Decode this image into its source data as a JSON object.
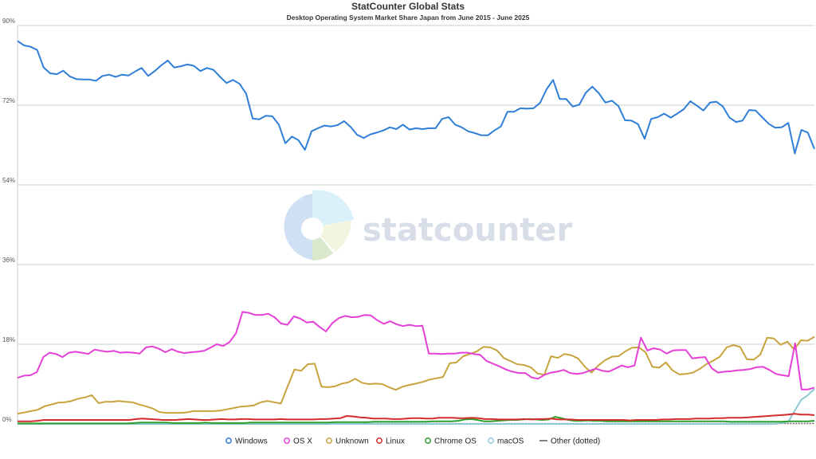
{
  "header": {
    "title": "StatCounter Global Stats",
    "subtitle": "Desktop Operating System Market Share Japan from June 2015 - June 2025"
  },
  "watermark": {
    "text": "statcounter"
  },
  "chart_data": {
    "type": "line",
    "title": "StatCounter Global Stats",
    "subtitle": "Desktop Operating System Market Share Japan from June 2015 - June 2025",
    "x_start": "2015-06",
    "x_end": "2025-06",
    "ylim": [
      0,
      90
    ],
    "y_ticks": [
      0,
      18,
      36,
      54,
      72,
      90
    ],
    "y_tick_labels": [
      "0%",
      "18%",
      "36%",
      "54%",
      "72%",
      "90%"
    ],
    "grid": true,
    "legend_position": "bottom",
    "series": [
      {
        "name": "Windows",
        "color": "#2f7ed8",
        "values": [
          86.5,
          85.5,
          85.2,
          84.5,
          80.5,
          79.2,
          79,
          79.8,
          78.5,
          77.9,
          77.8,
          77.8,
          77.5,
          78.6,
          78.9,
          78.4,
          78.9,
          78.7,
          79.6,
          80.4,
          78.6,
          79.7,
          81,
          82.1,
          80.5,
          80.8,
          81.2,
          80.9,
          79.7,
          80.4,
          80,
          78.4,
          77,
          77.7,
          76.8,
          74.6,
          69,
          68.8,
          69.6,
          69.5,
          67.6,
          63.4,
          64.9,
          64.1,
          61.9,
          66.1,
          66.8,
          67.4,
          67.2,
          67.5,
          68.4,
          67.1,
          65.3,
          64.6,
          65.4,
          65.8,
          66.3,
          67,
          66.6,
          67.6,
          66.5,
          66.8,
          66.6,
          66.8,
          66.8,
          68.9,
          69.3,
          67.6,
          67,
          66.1,
          65.7,
          65.2,
          65.2,
          66.3,
          67.2,
          70.5,
          70.5,
          71.3,
          71.2,
          71.3,
          72.5,
          75.6,
          77.7,
          73.4,
          73.4,
          71.7,
          72.1,
          74.8,
          76.2,
          74.7,
          72.6,
          73,
          71.8,
          68.6,
          68.5,
          67.7,
          64.4,
          68.9,
          69.3,
          70.1,
          69.2,
          70.1,
          71.1,
          72.9,
          71.9,
          70.8,
          72.6,
          72.8,
          71.7,
          69.2,
          68.2,
          68.5,
          70.9,
          70.8,
          69.3,
          67.8,
          66.9,
          67,
          68,
          61.1,
          66.4,
          65.8,
          62.1
        ]
      },
      {
        "name": "OS X",
        "color": "#e63fd6",
        "values": [
          10.4,
          10.9,
          11,
          11.7,
          15.1,
          16.1,
          15.8,
          15.1,
          16.1,
          16.3,
          16.1,
          15.8,
          16.8,
          16.5,
          16.3,
          16.5,
          16.1,
          16.2,
          16.1,
          15.9,
          17.3,
          17.5,
          17,
          16.2,
          16.9,
          16.3,
          16,
          16.2,
          16.3,
          16.5,
          17.2,
          18,
          17.6,
          18.5,
          20.5,
          25.3,
          25.1,
          24.6,
          24.6,
          24.9,
          24.1,
          22.7,
          22.4,
          24.3,
          23.8,
          22.9,
          23.1,
          21.9,
          20.9,
          22.8,
          23.9,
          24.4,
          24.1,
          24.2,
          24.6,
          24.5,
          23.4,
          22.6,
          23.2,
          22.5,
          22.1,
          22.4,
          22.1,
          22.2,
          15.9,
          15.9,
          15.8,
          15.9,
          15.9,
          16.1,
          16.1,
          15.8,
          15.6,
          14.2,
          13.6,
          13,
          12.3,
          11.8,
          11.5,
          11.5,
          10.5,
          10.2,
          11.1,
          11.6,
          11.8,
          12.2,
          11.5,
          11.3,
          11.5,
          12,
          12.5,
          12,
          11.8,
          12.5,
          13.2,
          12.8,
          13.2,
          19.5,
          16.6,
          17.1,
          16.8,
          15.9,
          16.6,
          16.7,
          16.7,
          14.8,
          15,
          15.1,
          12.6,
          11.6,
          11.8,
          11.9,
          12.1,
          12.2,
          12.4,
          12.8,
          12.9,
          12.2,
          11.3,
          11,
          10.8,
          18.2,
          7.8,
          7.8,
          8.2
        ]
      },
      {
        "name": "Unknown",
        "color": "#c8a33d",
        "values": [
          2.3,
          2.6,
          2.9,
          3.2,
          4,
          4.4,
          4.8,
          4.9,
          5.2,
          5.7,
          6,
          6.5,
          4.7,
          5,
          5,
          5.2,
          5,
          4.9,
          4.4,
          4,
          3.5,
          2.7,
          2.5,
          2.5,
          2.5,
          2.6,
          2.9,
          2.9,
          2.9,
          2.9,
          3,
          3.3,
          3.6,
          3.9,
          4,
          4.2,
          4.9,
          5.2,
          4.9,
          4.6,
          8.5,
          12.3,
          12,
          13.5,
          13.6,
          8.4,
          8.3,
          8.5,
          9.1,
          9.4,
          10.2,
          9.3,
          9,
          9.1,
          9,
          8.3,
          7.7,
          8.4,
          8.8,
          9.1,
          9.5,
          10,
          10.3,
          10.6,
          13.7,
          13.9,
          15.3,
          15.8,
          16.4,
          17.4,
          17.3,
          16.6,
          14.9,
          14.2,
          13.5,
          13.3,
          12.8,
          11.4,
          11.1,
          15.3,
          14.9,
          15.8,
          15.5,
          14.8,
          12.9,
          11.6,
          13.2,
          14.4,
          15.2,
          15.3,
          16.4,
          17.2,
          17.3,
          16.2,
          12.9,
          12.7,
          13.9,
          12.1,
          11.2,
          11.3,
          11.6,
          12.4,
          13.5,
          14.3,
          15.2,
          17.3,
          17.8,
          17.4,
          14.6,
          14.5,
          15.7,
          19.5,
          19.3,
          17.9,
          18.6,
          16.8,
          18.9,
          18.8,
          19.7
        ]
      },
      {
        "name": "Linux",
        "color": "#d42c2c",
        "values": [
          0.6,
          0.6,
          0.6,
          0.7,
          0.9,
          0.9,
          0.9,
          0.9,
          0.9,
          0.9,
          0.9,
          0.9,
          0.9,
          0.9,
          0.9,
          0.9,
          0.9,
          0.9,
          1.1,
          1.2,
          1.1,
          1,
          0.9,
          0.9,
          0.9,
          1,
          1.1,
          1,
          0.9,
          0.9,
          1,
          1.1,
          1,
          1,
          1.1,
          1.1,
          1,
          1,
          1,
          1,
          1.1,
          1,
          1,
          1,
          1,
          1,
          1.1,
          1.1,
          1.2,
          1.3,
          1.8,
          1.7,
          1.5,
          1.4,
          1.2,
          1.2,
          1.2,
          1.1,
          1.1,
          1.2,
          1.3,
          1.3,
          1.2,
          1.2,
          1.4,
          1.4,
          1.4,
          1.3,
          1.3,
          1.4,
          1.3,
          1.1,
          1.1,
          1,
          1,
          1,
          1,
          1.1,
          1,
          1.1,
          1.1,
          1.2,
          1,
          1,
          1,
          0.9,
          0.9,
          0.9,
          0.9,
          0.9,
          0.9,
          0.9,
          0.9,
          0.8,
          0.9,
          0.9,
          0.9,
          0.9,
          1,
          1,
          1.1,
          1.1,
          1.1,
          1.2,
          1.2,
          1.2,
          1.3,
          1.3,
          1.4,
          1.4,
          1.4,
          1.5,
          1.6,
          1.7,
          1.8,
          1.9,
          2,
          2.1,
          2.3,
          2.1,
          2.1,
          2
        ]
      },
      {
        "name": "Chrome OS",
        "color": "#2ca02c",
        "values": [
          0.1,
          0.1,
          0.1,
          0.1,
          0.1,
          0.1,
          0.1,
          0.1,
          0.1,
          0.1,
          0.1,
          0.1,
          0.1,
          0.1,
          0.1,
          0.1,
          0.1,
          0.1,
          0.2,
          0.3,
          0.3,
          0.3,
          0.3,
          0.3,
          0.2,
          0.2,
          0.2,
          0.2,
          0.2,
          0.3,
          0.2,
          0.2,
          0.2,
          0.2,
          0.2,
          0.2,
          0.3,
          0.3,
          0.3,
          0.3,
          0.3,
          0.3,
          0.3,
          0.3,
          0.3,
          0.3,
          0.3,
          0.3,
          0.3,
          0.4,
          0.4,
          0.4,
          0.4,
          0.4,
          0.4,
          0.5,
          0.5,
          0.5,
          0.5,
          0.5,
          0.5,
          0.5,
          0.5,
          0.5,
          0.6,
          0.6,
          0.6,
          0.6,
          0.7,
          1,
          1.1,
          0.9,
          0.6,
          0.6,
          0.7,
          0.8,
          0.9,
          0.9,
          1,
          1.1,
          1,
          0.9,
          1,
          1.6,
          1.3,
          0.9,
          0.7,
          0.7,
          0.8,
          0.7,
          0.7,
          0.6,
          0.6,
          0.6,
          0.6,
          0.6,
          0.6,
          0.6,
          0.6,
          0.6,
          0.6,
          0.6,
          0.6,
          0.6,
          0.6,
          0.6,
          0.6,
          0.6,
          0.6,
          0.6,
          0.5,
          0.5,
          0.5,
          0.5,
          0.5,
          0.5,
          0.5,
          0.5,
          0.5,
          0.6,
          0.6,
          0.6,
          0.6,
          0.7
        ]
      },
      {
        "name": "macOS",
        "color": "#8ec9d4",
        "values": [
          0,
          0,
          0,
          0,
          0,
          0,
          0,
          0,
          0,
          0,
          0,
          0,
          0,
          0,
          0,
          0,
          0,
          0,
          0,
          0,
          0,
          0,
          0,
          0,
          0,
          0,
          0,
          0,
          0,
          0,
          0,
          0,
          0,
          0,
          0,
          0,
          0,
          0,
          0,
          0,
          0,
          0,
          0,
          0,
          0,
          0,
          0,
          0,
          0,
          0,
          0,
          0,
          0,
          0,
          0,
          0,
          0,
          0,
          0,
          0,
          0,
          0,
          0,
          0,
          0,
          0,
          0,
          0,
          0,
          0,
          0,
          0,
          0,
          0,
          0,
          0,
          0,
          0,
          0,
          0,
          0,
          0,
          0,
          0,
          0,
          0,
          0,
          0,
          0,
          0,
          0,
          0,
          0,
          0,
          0,
          0,
          0,
          0,
          0,
          0,
          0,
          0,
          0,
          0,
          0,
          0,
          0,
          0,
          0,
          0,
          0,
          0,
          0,
          0,
          0,
          0,
          0,
          0.2,
          0.5,
          3,
          5.5,
          6.5,
          7.9
        ]
      },
      {
        "name": "Other (dotted)",
        "color": "#555555",
        "dotted": true,
        "values": [
          0.1,
          0.1,
          0.1,
          0.1,
          0.1,
          0.1,
          0.1,
          0.1,
          0.1,
          0.1,
          0.1,
          0.1,
          0.1,
          0.1,
          0.1,
          0.1,
          0.1,
          0.1,
          0.1,
          0.1,
          0.1,
          0.1,
          0.1,
          0.1,
          0.1,
          0.1,
          0.1,
          0.1,
          0.1,
          0.1,
          0.1,
          0.1,
          0.1,
          0.1,
          0.1,
          0.1,
          0.1,
          0.1,
          0.1,
          0.1,
          0.1,
          0.1,
          0.1,
          0.1,
          0.1,
          0.1,
          0.1,
          0.1,
          0.1,
          0.1,
          0.1,
          0.1,
          0.1,
          0.1,
          0.1,
          0.1,
          0.1,
          0.1,
          0.1,
          0.1,
          0.1,
          0.1,
          0.1,
          0.1,
          0.1,
          0.1,
          0.1,
          0.1,
          0.1,
          0.1,
          0.1,
          0.1,
          0.1,
          0.1,
          0.1,
          0.1,
          0.1,
          0.1,
          0.1,
          0.1,
          0.1,
          0.1,
          0.1,
          0.1,
          0.1,
          0.1,
          0.1,
          0.1,
          0.1,
          0.1,
          0.1,
          0.1,
          0.1,
          0.1,
          0.1,
          0.1,
          0.1,
          0.1,
          0.1,
          0.1,
          0.1,
          0.1,
          0.1,
          0.1,
          0.1,
          0.1,
          0.1,
          0.1,
          0.1,
          0.1,
          0.1,
          0.1,
          0.1,
          0.1,
          0.1,
          0.1,
          0.1,
          0.1,
          0.1,
          0.1,
          0.1,
          0.1,
          0.1,
          0.1,
          0.1
        ]
      }
    ]
  }
}
